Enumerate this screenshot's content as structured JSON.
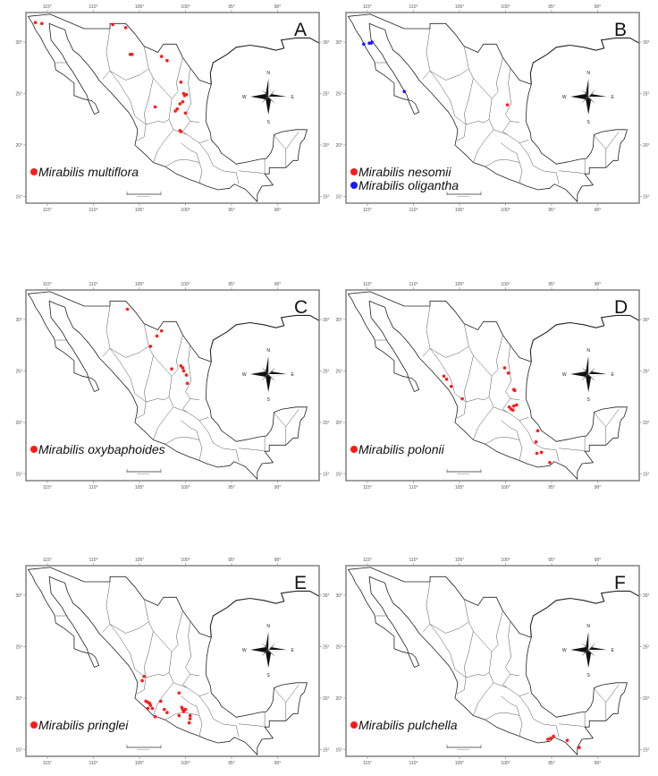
{
  "figure": {
    "lon_ticks": [
      "115°",
      "110°",
      "105°",
      "100°",
      "95°",
      "90°"
    ],
    "lat_ticks": [
      "30°",
      "25°",
      "20°",
      "15°"
    ],
    "compass": {
      "n": "N",
      "e": "E",
      "s": "S",
      "w": "W"
    },
    "colors": {
      "red": "#ff1a1a",
      "blue": "#1a1aff"
    }
  },
  "panels": [
    {
      "letter": "A",
      "legend": [
        {
          "species": "Mirabilis multiflora",
          "color": "#ff1a1a"
        }
      ],
      "points": [
        {
          "s": 0,
          "lon": -116.3,
          "lat": 31.9
        },
        {
          "s": 0,
          "lon": -115.6,
          "lat": 31.8
        },
        {
          "s": 0,
          "lon": -107.9,
          "lat": 31.7
        },
        {
          "s": 0,
          "lon": -106.5,
          "lat": 31.4
        },
        {
          "s": 0,
          "lon": -106.0,
          "lat": 28.8
        },
        {
          "s": 0,
          "lon": -105.8,
          "lat": 28.8
        },
        {
          "s": 0,
          "lon": -102.6,
          "lat": 28.6
        },
        {
          "s": 0,
          "lon": -102.0,
          "lat": 28.2
        },
        {
          "s": 0,
          "lon": -100.5,
          "lat": 26.1
        },
        {
          "s": 0,
          "lon": -100.2,
          "lat": 25.0
        },
        {
          "s": 0,
          "lon": -100.1,
          "lat": 24.8
        },
        {
          "s": 0,
          "lon": -99.9,
          "lat": 24.9
        },
        {
          "s": 0,
          "lon": -100.3,
          "lat": 24.2
        },
        {
          "s": 0,
          "lon": -100.6,
          "lat": 24.0
        },
        {
          "s": 0,
          "lon": -100.9,
          "lat": 23.5
        },
        {
          "s": 0,
          "lon": -101.1,
          "lat": 23.3
        },
        {
          "s": 0,
          "lon": -100.0,
          "lat": 23.1
        },
        {
          "s": 0,
          "lon": -103.3,
          "lat": 23.7
        },
        {
          "s": 0,
          "lon": -100.6,
          "lat": 21.4
        },
        {
          "s": 0,
          "lon": -100.5,
          "lat": 21.3
        }
      ]
    },
    {
      "letter": "B",
      "legend": [
        {
          "species": "Mirabilis nesomii",
          "color": "#ff1a1a"
        },
        {
          "species": "Mirabilis oligantha",
          "color": "#1a1aff"
        }
      ],
      "points": [
        {
          "s": 1,
          "lon": -115.4,
          "lat": 29.8
        },
        {
          "s": 1,
          "lon": -114.8,
          "lat": 29.9
        },
        {
          "s": 1,
          "lon": -114.5,
          "lat": 30.0
        },
        {
          "s": 1,
          "lon": -114.6,
          "lat": 29.9
        },
        {
          "s": 1,
          "lon": -111.0,
          "lat": 25.2
        },
        {
          "s": 0,
          "lon": -99.8,
          "lat": 23.9
        }
      ]
    },
    {
      "letter": "C",
      "legend": [
        {
          "species": "Mirabilis oxybaphoides",
          "color": "#ff1a1a"
        }
      ],
      "points": [
        {
          "s": 0,
          "lon": -106.3,
          "lat": 31.0
        },
        {
          "s": 0,
          "lon": -102.6,
          "lat": 28.9
        },
        {
          "s": 0,
          "lon": -103.1,
          "lat": 28.4
        },
        {
          "s": 0,
          "lon": -103.8,
          "lat": 27.4
        },
        {
          "s": 0,
          "lon": -101.5,
          "lat": 25.2
        },
        {
          "s": 0,
          "lon": -100.5,
          "lat": 25.5
        },
        {
          "s": 0,
          "lon": -100.3,
          "lat": 25.3
        },
        {
          "s": 0,
          "lon": -100.2,
          "lat": 25.0
        },
        {
          "s": 0,
          "lon": -99.9,
          "lat": 24.6
        },
        {
          "s": 0,
          "lon": -99.8,
          "lat": 23.8
        }
      ]
    },
    {
      "letter": "D",
      "legend": [
        {
          "species": "Mirabilis polonii",
          "color": "#ff1a1a"
        }
      ],
      "points": [
        {
          "s": 0,
          "lon": -106.7,
          "lat": 24.5
        },
        {
          "s": 0,
          "lon": -106.4,
          "lat": 24.2
        },
        {
          "s": 0,
          "lon": -105.9,
          "lat": 23.5
        },
        {
          "s": 0,
          "lon": -104.7,
          "lat": 22.3
        },
        {
          "s": 0,
          "lon": -100.1,
          "lat": 25.3
        },
        {
          "s": 0,
          "lon": -99.7,
          "lat": 24.8
        },
        {
          "s": 0,
          "lon": -99.1,
          "lat": 23.2
        },
        {
          "s": 0,
          "lon": -99.0,
          "lat": 23.1
        },
        {
          "s": 0,
          "lon": -99.6,
          "lat": 21.5
        },
        {
          "s": 0,
          "lon": -99.4,
          "lat": 21.3
        },
        {
          "s": 0,
          "lon": -99.1,
          "lat": 21.6
        },
        {
          "s": 0,
          "lon": -98.8,
          "lat": 21.7
        },
        {
          "s": 0,
          "lon": -99.2,
          "lat": 21.2
        },
        {
          "s": 0,
          "lon": -96.5,
          "lat": 19.2
        },
        {
          "s": 0,
          "lon": -96.7,
          "lat": 18.1
        },
        {
          "s": 0,
          "lon": -96.6,
          "lat": 17.0
        },
        {
          "s": 0,
          "lon": -96.1,
          "lat": 17.1
        },
        {
          "s": 0,
          "lon": -95.2,
          "lat": 16.1
        }
      ]
    },
    {
      "letter": "E",
      "legend": [
        {
          "species": "Mirabilis pringlei",
          "color": "#ff1a1a"
        }
      ],
      "points": [
        {
          "s": 0,
          "lon": -104.5,
          "lat": 22.1
        },
        {
          "s": 0,
          "lon": -104.7,
          "lat": 21.7
        },
        {
          "s": 0,
          "lon": -104.3,
          "lat": 19.7
        },
        {
          "s": 0,
          "lon": -104.1,
          "lat": 19.6
        },
        {
          "s": 0,
          "lon": -103.9,
          "lat": 19.5
        },
        {
          "s": 0,
          "lon": -103.8,
          "lat": 19.3
        },
        {
          "s": 0,
          "lon": -103.6,
          "lat": 19.0
        },
        {
          "s": 0,
          "lon": -104.1,
          "lat": 19.0
        },
        {
          "s": 0,
          "lon": -102.7,
          "lat": 19.7
        },
        {
          "s": 0,
          "lon": -102.3,
          "lat": 18.9
        },
        {
          "s": 0,
          "lon": -102.0,
          "lat": 18.6
        },
        {
          "s": 0,
          "lon": -103.3,
          "lat": 18.2
        },
        {
          "s": 0,
          "lon": -100.7,
          "lat": 20.5
        },
        {
          "s": 0,
          "lon": -100.4,
          "lat": 19.1
        },
        {
          "s": 0,
          "lon": -100.3,
          "lat": 18.9
        },
        {
          "s": 0,
          "lon": -100.2,
          "lat": 18.7
        },
        {
          "s": 0,
          "lon": -100.0,
          "lat": 18.9
        },
        {
          "s": 0,
          "lon": -100.7,
          "lat": 18.3
        },
        {
          "s": 0,
          "lon": -99.5,
          "lat": 18.3
        },
        {
          "s": 0,
          "lon": -99.5,
          "lat": 18.0
        },
        {
          "s": 0,
          "lon": -99.6,
          "lat": 17.6
        }
      ]
    },
    {
      "letter": "F",
      "legend": [
        {
          "species": "Mirabilis pulchella",
          "color": "#ff1a1a"
        }
      ],
      "points": [
        {
          "s": 0,
          "lon": -95.4,
          "lat": 16.0
        },
        {
          "s": 0,
          "lon": -95.1,
          "lat": 16.1
        },
        {
          "s": 0,
          "lon": -94.8,
          "lat": 16.3
        },
        {
          "s": 0,
          "lon": -93.3,
          "lat": 15.9
        },
        {
          "s": 0,
          "lon": -92.0,
          "lat": 15.2
        }
      ]
    }
  ]
}
